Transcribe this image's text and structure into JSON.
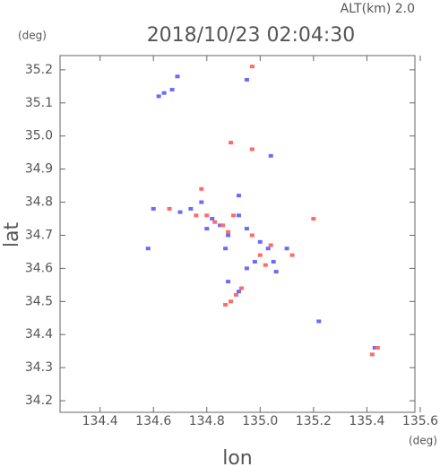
{
  "chart_data": {
    "type": "scatter",
    "title": "2018/10/23 02:04:30",
    "subtitle": "ALT(km) 2.0",
    "x_label": "lon",
    "y_label": "lat",
    "x_unit": "(deg)",
    "y_unit": "(deg)",
    "xlim": [
      134.25,
      135.58
    ],
    "ylim": [
      34.165,
      35.243
    ],
    "xticks": [
      134.4,
      134.6,
      134.8,
      {
        "value": 135.0,
        "label": "135.0"
      },
      135.2,
      135.4,
      135.6
    ],
    "yticks": [
      34.2,
      34.3,
      34.4,
      34.5,
      34.6,
      34.7,
      34.8,
      34.9,
      {
        "value": 35.0,
        "label": "35.0"
      },
      35.1,
      35.2
    ],
    "series": [
      {
        "color": "#6a6aff",
        "x": [
          134.64,
          134.67,
          134.69,
          134.62,
          134.6,
          134.7,
          134.78,
          134.82,
          134.85,
          134.8,
          134.88,
          134.92,
          134.95,
          135.0,
          135.05,
          134.98,
          134.95,
          135.06,
          134.88,
          134.92,
          135.1,
          135.04,
          134.95,
          134.92,
          135.22,
          135.43,
          134.58,
          134.74,
          134.87,
          135.03
        ],
        "y": [
          35.13,
          35.14,
          35.18,
          35.12,
          34.78,
          34.77,
          34.8,
          34.75,
          34.73,
          34.72,
          34.7,
          34.76,
          34.72,
          34.68,
          34.62,
          34.62,
          34.6,
          34.59,
          34.56,
          34.53,
          34.66,
          34.94,
          35.17,
          34.82,
          34.44,
          34.36,
          34.66,
          34.78,
          34.66,
          34.66
        ]
      },
      {
        "color": "#ff6a6a",
        "x": [
          134.66,
          134.78,
          134.76,
          134.83,
          134.9,
          134.88,
          134.97,
          135.04,
          135.0,
          135.02,
          134.89,
          134.91,
          134.93,
          134.87,
          135.2,
          135.42,
          135.44,
          134.97,
          134.89,
          134.97,
          134.8,
          135.12,
          134.86
        ],
        "y": [
          34.78,
          34.84,
          34.76,
          34.74,
          34.76,
          34.71,
          34.7,
          34.67,
          34.64,
          34.61,
          34.5,
          34.52,
          34.54,
          34.49,
          34.75,
          34.34,
          34.36,
          35.21,
          34.98,
          34.96,
          34.76,
          34.64,
          34.73
        ]
      }
    ]
  }
}
